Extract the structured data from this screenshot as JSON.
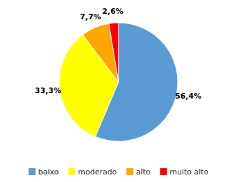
{
  "chart_data": {
    "type": "pie",
    "categories": [
      "baixo",
      "moderado",
      "alto",
      "muito alto"
    ],
    "values": [
      56.4,
      33.3,
      7.7,
      2.6
    ],
    "value_labels": [
      "56,4%",
      "33,3%",
      "7,7%",
      "2,6%"
    ],
    "colors": [
      "#5B9BD5",
      "#FFFF00",
      "#FFA500",
      "#FF0000"
    ],
    "data_labels": true,
    "legend": "bottom"
  }
}
